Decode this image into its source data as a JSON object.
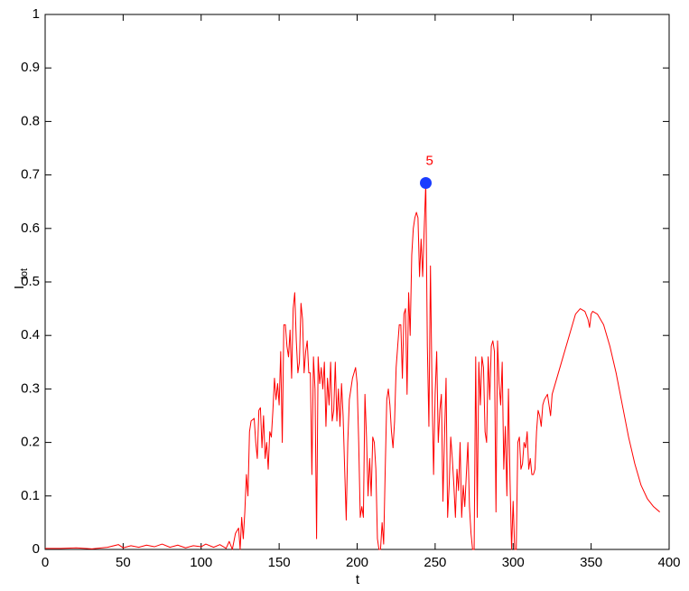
{
  "chart_data": {
    "type": "line",
    "xlabel": "t",
    "ylabel": "I",
    "ylabel_sub": "tot",
    "xlim": [
      0,
      400
    ],
    "ylim": [
      0,
      1
    ],
    "xticks": [
      0,
      50,
      100,
      150,
      200,
      250,
      300,
      350,
      400
    ],
    "yticks": [
      0,
      0.1,
      0.2,
      0.3,
      0.4,
      0.5,
      0.6,
      0.7,
      0.8,
      0.9,
      1
    ],
    "grid": false,
    "x": [
      0,
      10,
      20,
      30,
      40,
      47,
      50,
      55,
      60,
      65,
      70,
      75,
      80,
      85,
      90,
      95,
      100,
      103,
      108,
      112,
      116,
      118,
      120,
      122,
      124,
      125,
      126,
      127,
      128,
      129,
      130,
      131,
      132,
      134,
      135,
      136,
      137,
      138,
      139,
      140,
      141,
      142,
      143,
      144,
      145,
      146,
      147,
      148,
      149,
      150,
      151,
      152,
      153,
      154,
      155,
      156,
      157,
      158,
      159,
      160,
      161,
      162,
      163,
      164,
      165,
      166,
      167,
      168,
      169,
      170,
      171,
      172,
      173,
      174,
      175,
      176,
      177,
      178,
      179,
      180,
      181,
      182,
      183,
      184,
      185,
      186,
      187,
      188,
      189,
      190,
      191,
      192,
      193,
      194,
      195,
      196,
      197,
      198,
      199,
      200,
      201,
      202,
      203,
      204,
      205,
      206,
      207,
      208,
      209,
      210,
      211,
      212,
      213,
      214,
      215,
      216,
      217,
      218,
      219,
      220,
      221,
      222,
      223,
      224,
      225,
      226,
      227,
      228,
      229,
      230,
      231,
      232,
      233,
      234,
      235,
      236,
      237,
      238,
      239,
      240,
      241,
      242,
      243,
      244,
      245,
      246,
      247,
      248,
      249,
      250,
      251,
      252,
      253,
      254,
      255,
      256,
      257,
      258,
      259,
      260,
      261,
      262,
      263,
      264,
      265,
      266,
      267,
      268,
      269,
      270,
      271,
      272,
      273,
      274,
      275,
      276,
      277,
      278,
      279,
      280,
      281,
      282,
      283,
      284,
      285,
      286,
      287,
      288,
      289,
      290,
      291,
      292,
      293,
      294,
      295,
      296,
      297,
      298,
      299,
      300,
      301,
      302,
      303,
      304,
      305,
      306,
      307,
      308,
      309,
      310,
      311,
      312,
      313,
      314,
      315,
      316,
      317,
      318,
      319,
      320,
      322,
      324,
      325,
      328,
      331,
      334,
      337,
      340,
      343,
      346,
      348,
      349,
      350,
      351,
      354,
      358,
      362,
      366,
      370,
      374,
      378,
      382,
      386,
      390,
      394
    ],
    "series": [
      {
        "name": "Itot",
        "color": "#ff0000",
        "values": [
          0.002,
          0.002,
          0.003,
          0.001,
          0.004,
          0.009,
          0.003,
          0.007,
          0.004,
          0.008,
          0.005,
          0.01,
          0.004,
          0.008,
          0.003,
          0.007,
          0.005,
          0.01,
          0.004,
          0.009,
          0.002,
          0.015,
          0,
          0.03,
          0.04,
          0,
          0.06,
          0.02,
          0.07,
          0.14,
          0.1,
          0.22,
          0.24,
          0.245,
          0.2,
          0.17,
          0.26,
          0.265,
          0.19,
          0.25,
          0.17,
          0.2,
          0.15,
          0.22,
          0.21,
          0.26,
          0.32,
          0.28,
          0.31,
          0.27,
          0.37,
          0.2,
          0.42,
          0.42,
          0.38,
          0.36,
          0.41,
          0.32,
          0.45,
          0.48,
          0.39,
          0.33,
          0.35,
          0.46,
          0.43,
          0.33,
          0.37,
          0.39,
          0.33,
          0.33,
          0.14,
          0.36,
          0.3,
          0.02,
          0.36,
          0.31,
          0.34,
          0.3,
          0.35,
          0.23,
          0.32,
          0.27,
          0.35,
          0.24,
          0.26,
          0.35,
          0.24,
          0.3,
          0.23,
          0.31,
          0.25,
          0.15,
          0.055,
          0.2,
          0.28,
          0.3,
          0.32,
          0.33,
          0.34,
          0.31,
          0.2,
          0.06,
          0.08,
          0.06,
          0.29,
          0.21,
          0.1,
          0.17,
          0.1,
          0.21,
          0.2,
          0.15,
          0.02,
          0,
          0,
          0.05,
          0.01,
          0.15,
          0.28,
          0.3,
          0.27,
          0.22,
          0.19,
          0.24,
          0.34,
          0.38,
          0.42,
          0.42,
          0.32,
          0.44,
          0.45,
          0.29,
          0.48,
          0.4,
          0.55,
          0.6,
          0.62,
          0.63,
          0.62,
          0.51,
          0.58,
          0.51,
          0.6,
          0.685,
          0.38,
          0.23,
          0.53,
          0.3,
          0.14,
          0.29,
          0.37,
          0.2,
          0.26,
          0.29,
          0.09,
          0.21,
          0.32,
          0.06,
          0.12,
          0.21,
          0.17,
          0.12,
          0.06,
          0.15,
          0.11,
          0.2,
          0.06,
          0.12,
          0.08,
          0.14,
          0.2,
          0.08,
          0.03,
          0,
          0,
          0.36,
          0.06,
          0.35,
          0.27,
          0.36,
          0.34,
          0.22,
          0.2,
          0.36,
          0.28,
          0.38,
          0.39,
          0.37,
          0.07,
          0.39,
          0.31,
          0.27,
          0.35,
          0.15,
          0.23,
          0.1,
          0.3,
          0.13,
          0,
          0.09,
          0,
          0,
          0.2,
          0.21,
          0.15,
          0.16,
          0.2,
          0.19,
          0.22,
          0.15,
          0.17,
          0.14,
          0.14,
          0.15,
          0.22,
          0.26,
          0.25,
          0.23,
          0.27,
          0.28,
          0.29,
          0.25,
          0.29,
          0.32,
          0.35,
          0.38,
          0.41,
          0.44,
          0.45,
          0.445,
          0.43,
          0.415,
          0.44,
          0.445,
          0.44,
          0.42,
          0.38,
          0.33,
          0.27,
          0.21,
          0.16,
          0.12,
          0.095,
          0.08,
          0.07
        ]
      }
    ],
    "highlight": {
      "x": 244,
      "y": 0.685,
      "label": "5",
      "color": "#1a3cff",
      "label_color": "#ff0000"
    }
  }
}
